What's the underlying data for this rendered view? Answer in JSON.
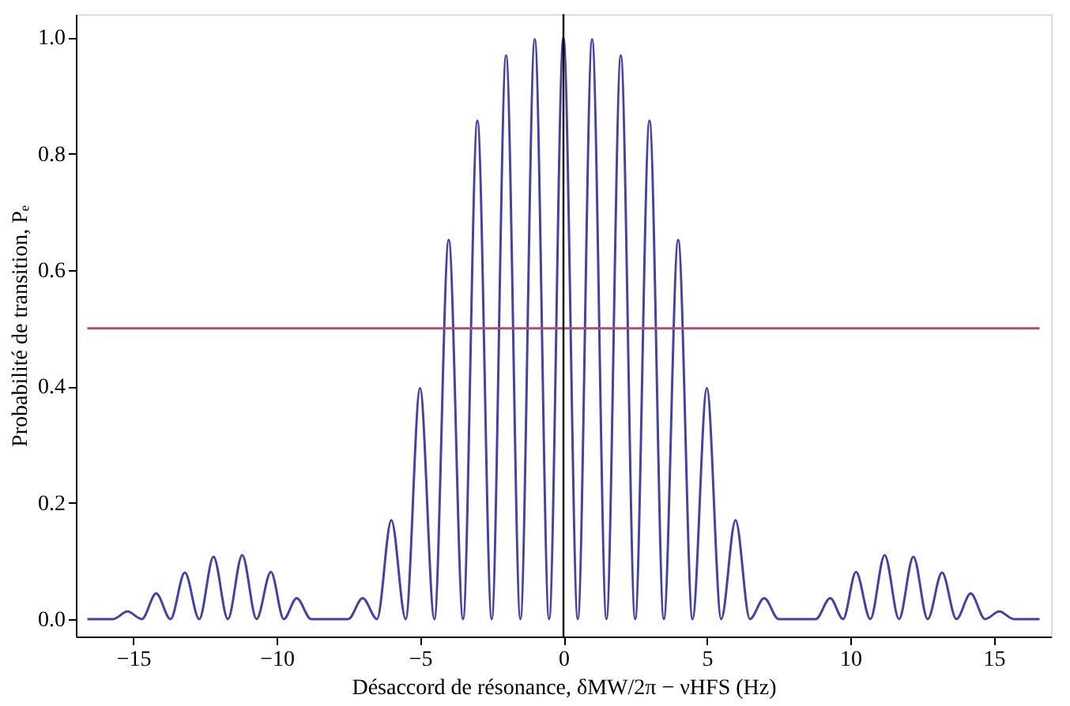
{
  "chart_data": {
    "type": "line",
    "xlabel": "Désaccord de résonance, δMW/2π − νHFS (Hz)",
    "ylabel": "Probabilité de transition, Pₑ",
    "xlim": [
      -17,
      17
    ],
    "ylim": [
      -0.03,
      1.04
    ],
    "xticks": [
      {
        "value": -15,
        "label": "−15"
      },
      {
        "value": -10,
        "label": "−10"
      },
      {
        "value": -5,
        "label": "−5"
      },
      0,
      5,
      10,
      15
    ],
    "yticks": [
      {
        "value": 0,
        "label": "0.0"
      },
      0.2,
      0.4,
      0.6,
      0.8,
      {
        "value": 1,
        "label": "1.0"
      }
    ],
    "grid": false,
    "series": [
      {
        "color": "#4444a0",
        "x": [
          -16.6,
          -15.7,
          -15.2,
          -14.7,
          -14.2,
          -13.7,
          -13.2,
          -12.7,
          -12.2,
          -11.7,
          -11.2,
          -10.7,
          -10.2,
          -9.75,
          -9.3,
          -8.8,
          -7.5,
          -7,
          -6.5,
          -6,
          -5.5,
          -5,
          -4.5,
          -4,
          -3.5,
          -3,
          -2.5,
          -2,
          -1.5,
          -1,
          -0.5,
          0,
          0.5,
          1,
          1.5,
          2,
          2.5,
          3,
          3.5,
          4,
          4.5,
          5,
          5.5,
          6,
          6.5,
          7,
          7.5,
          8.8,
          9.3,
          9.75,
          10.2,
          10.7,
          11.2,
          11.7,
          12.2,
          12.7,
          13.2,
          13.7,
          14.2,
          14.7,
          15.2,
          15.7,
          16.6
        ],
        "values": [
          0,
          0,
          0.013,
          0,
          0.044,
          0,
          0.08,
          0,
          0.107,
          0,
          0.11,
          0,
          0.081,
          0,
          0.036,
          0,
          0,
          0.036,
          0,
          0.17,
          0,
          0.397,
          0,
          0.652,
          0,
          0.857,
          0,
          0.969,
          0,
          0.997,
          0,
          1.0,
          0,
          0.997,
          0,
          0.969,
          0,
          0.857,
          0,
          0.652,
          0,
          0.397,
          0,
          0.17,
          0,
          0.036,
          0,
          0,
          0.036,
          0,
          0.081,
          0,
          0.11,
          0,
          0.107,
          0,
          0.08,
          0,
          0.044,
          0,
          0.013,
          0,
          0
        ]
      },
      {
        "color": "#a4507e",
        "x": [
          -16.6,
          16.6
        ],
        "values": [
          0.5,
          0.5
        ]
      }
    ],
    "ref_lines": [
      {
        "axis": "x",
        "value": 0,
        "color": "#000000"
      }
    ]
  }
}
